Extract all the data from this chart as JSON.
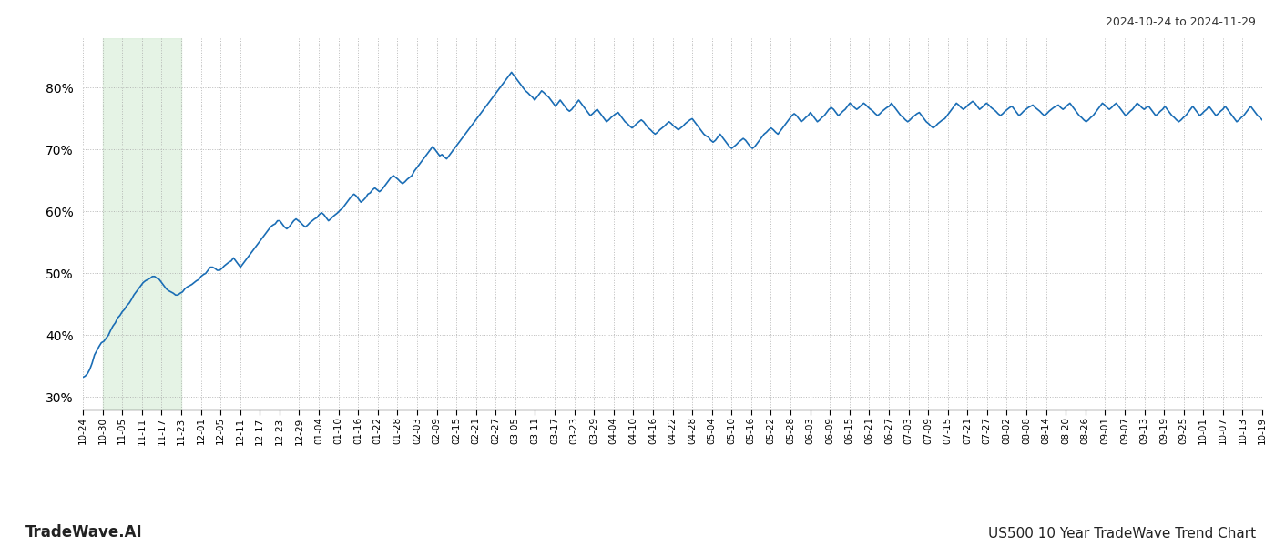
{
  "title_top_right": "2024-10-24 to 2024-11-29",
  "title_bottom_left": "TradeWave.AI",
  "title_bottom_right": "US500 10 Year TradeWave Trend Chart",
  "background_color": "#ffffff",
  "line_color": "#1a6db5",
  "highlight_color": "#d4ecd4",
  "highlight_alpha": 0.6,
  "ylim": [
    28,
    88
  ],
  "yticks": [
    30,
    40,
    50,
    60,
    70,
    80
  ],
  "grid_color": "#aaaaaa",
  "grid_style": ":",
  "grid_alpha": 0.8,
  "x_labels": [
    "10-24",
    "10-30",
    "11-05",
    "11-11",
    "11-17",
    "11-23",
    "12-01",
    "12-05",
    "12-11",
    "12-17",
    "12-23",
    "12-29",
    "01-04",
    "01-10",
    "01-16",
    "01-22",
    "01-28",
    "02-03",
    "02-09",
    "02-15",
    "02-21",
    "02-27",
    "03-05",
    "03-11",
    "03-17",
    "03-23",
    "03-29",
    "04-04",
    "04-10",
    "04-16",
    "04-22",
    "04-28",
    "05-04",
    "05-10",
    "05-16",
    "05-22",
    "05-28",
    "06-03",
    "06-09",
    "06-15",
    "06-21",
    "06-27",
    "07-03",
    "07-09",
    "07-15",
    "07-21",
    "07-27",
    "08-02",
    "08-08",
    "08-14",
    "08-20",
    "08-26",
    "09-01",
    "09-07",
    "09-13",
    "09-19",
    "09-25",
    "10-01",
    "10-07",
    "10-13",
    "10-19"
  ],
  "highlight_x_start_label": "10-30",
  "highlight_x_end_label": "11-23",
  "y_values": [
    33.2,
    33.4,
    33.8,
    34.5,
    35.5,
    36.8,
    37.5,
    38.2,
    38.8,
    39.0,
    39.5,
    40.0,
    40.8,
    41.5,
    42.0,
    42.8,
    43.2,
    43.8,
    44.2,
    44.8,
    45.2,
    45.8,
    46.5,
    47.0,
    47.5,
    48.0,
    48.5,
    48.8,
    49.0,
    49.2,
    49.5,
    49.5,
    49.2,
    49.0,
    48.5,
    48.0,
    47.5,
    47.2,
    47.0,
    46.8,
    46.5,
    46.5,
    46.8,
    47.0,
    47.5,
    47.8,
    48.0,
    48.2,
    48.5,
    48.8,
    49.0,
    49.5,
    49.8,
    50.0,
    50.5,
    51.0,
    51.0,
    50.8,
    50.5,
    50.5,
    50.8,
    51.2,
    51.5,
    51.8,
    52.0,
    52.5,
    52.0,
    51.5,
    51.0,
    51.5,
    52.0,
    52.5,
    53.0,
    53.5,
    54.0,
    54.5,
    55.0,
    55.5,
    56.0,
    56.5,
    57.0,
    57.5,
    57.8,
    58.0,
    58.5,
    58.5,
    58.0,
    57.5,
    57.2,
    57.5,
    58.0,
    58.5,
    58.8,
    58.5,
    58.2,
    57.8,
    57.5,
    57.8,
    58.2,
    58.5,
    58.8,
    59.0,
    59.5,
    59.8,
    59.5,
    59.0,
    58.5,
    58.8,
    59.2,
    59.5,
    59.8,
    60.2,
    60.5,
    61.0,
    61.5,
    62.0,
    62.5,
    62.8,
    62.5,
    62.0,
    61.5,
    61.8,
    62.2,
    62.8,
    63.0,
    63.5,
    63.8,
    63.5,
    63.2,
    63.5,
    64.0,
    64.5,
    65.0,
    65.5,
    65.8,
    65.5,
    65.2,
    64.8,
    64.5,
    64.8,
    65.2,
    65.5,
    65.8,
    66.5,
    67.0,
    67.5,
    68.0,
    68.5,
    69.0,
    69.5,
    70.0,
    70.5,
    70.0,
    69.5,
    69.0,
    69.2,
    68.8,
    68.5,
    69.0,
    69.5,
    70.0,
    70.5,
    71.0,
    71.5,
    72.0,
    72.5,
    73.0,
    73.5,
    74.0,
    74.5,
    75.0,
    75.5,
    76.0,
    76.5,
    77.0,
    77.5,
    78.0,
    78.5,
    79.0,
    79.5,
    80.0,
    80.5,
    81.0,
    81.5,
    82.0,
    82.5,
    82.0,
    81.5,
    81.0,
    80.5,
    80.0,
    79.5,
    79.2,
    78.8,
    78.5,
    78.0,
    78.5,
    79.0,
    79.5,
    79.2,
    78.8,
    78.5,
    78.0,
    77.5,
    77.0,
    77.5,
    78.0,
    77.5,
    77.0,
    76.5,
    76.2,
    76.5,
    77.0,
    77.5,
    78.0,
    77.5,
    77.0,
    76.5,
    76.0,
    75.5,
    75.8,
    76.2,
    76.5,
    76.0,
    75.5,
    75.0,
    74.5,
    74.8,
    75.2,
    75.5,
    75.8,
    76.0,
    75.5,
    75.0,
    74.5,
    74.2,
    73.8,
    73.5,
    73.8,
    74.2,
    74.5,
    74.8,
    74.5,
    74.0,
    73.5,
    73.2,
    72.8,
    72.5,
    72.8,
    73.2,
    73.5,
    73.8,
    74.2,
    74.5,
    74.2,
    73.8,
    73.5,
    73.2,
    73.5,
    73.8,
    74.2,
    74.5,
    74.8,
    75.0,
    74.5,
    74.0,
    73.5,
    73.0,
    72.5,
    72.2,
    72.0,
    71.5,
    71.2,
    71.5,
    72.0,
    72.5,
    72.0,
    71.5,
    71.0,
    70.5,
    70.2,
    70.5,
    70.8,
    71.2,
    71.5,
    71.8,
    71.5,
    71.0,
    70.5,
    70.2,
    70.5,
    71.0,
    71.5,
    72.0,
    72.5,
    72.8,
    73.2,
    73.5,
    73.2,
    72.8,
    72.5,
    73.0,
    73.5,
    74.0,
    74.5,
    75.0,
    75.5,
    75.8,
    75.5,
    75.0,
    74.5,
    74.8,
    75.2,
    75.5,
    76.0,
    75.5,
    75.0,
    74.5,
    74.8,
    75.2,
    75.5,
    76.0,
    76.5,
    76.8,
    76.5,
    76.0,
    75.5,
    75.8,
    76.2,
    76.5,
    77.0,
    77.5,
    77.2,
    76.8,
    76.5,
    76.8,
    77.2,
    77.5,
    77.2,
    76.8,
    76.5,
    76.2,
    75.8,
    75.5,
    75.8,
    76.2,
    76.5,
    76.8,
    77.0,
    77.5,
    77.0,
    76.5,
    76.0,
    75.5,
    75.2,
    74.8,
    74.5,
    74.8,
    75.2,
    75.5,
    75.8,
    76.0,
    75.5,
    75.0,
    74.5,
    74.2,
    73.8,
    73.5,
    73.8,
    74.2,
    74.5,
    74.8,
    75.0,
    75.5,
    76.0,
    76.5,
    77.0,
    77.5,
    77.2,
    76.8,
    76.5,
    76.8,
    77.2,
    77.5,
    77.8,
    77.5,
    77.0,
    76.5,
    76.8,
    77.2,
    77.5,
    77.2,
    76.8,
    76.5,
    76.2,
    75.8,
    75.5,
    75.8,
    76.2,
    76.5,
    76.8,
    77.0,
    76.5,
    76.0,
    75.5,
    75.8,
    76.2,
    76.5,
    76.8,
    77.0,
    77.2,
    76.8,
    76.5,
    76.2,
    75.8,
    75.5,
    75.8,
    76.2,
    76.5,
    76.8,
    77.0,
    77.2,
    76.8,
    76.5,
    76.8,
    77.2,
    77.5,
    77.0,
    76.5,
    76.0,
    75.5,
    75.2,
    74.8,
    74.5,
    74.8,
    75.2,
    75.5,
    76.0,
    76.5,
    77.0,
    77.5,
    77.2,
    76.8,
    76.5,
    76.8,
    77.2,
    77.5,
    77.0,
    76.5,
    76.0,
    75.5,
    75.8,
    76.2,
    76.5,
    77.0,
    77.5,
    77.2,
    76.8,
    76.5,
    76.8,
    77.0,
    76.5,
    76.0,
    75.5,
    75.8,
    76.2,
    76.5,
    77.0,
    76.5,
    76.0,
    75.5,
    75.2,
    74.8,
    74.5,
    74.8,
    75.2,
    75.5,
    76.0,
    76.5,
    77.0,
    76.5,
    76.0,
    75.5,
    75.8,
    76.2,
    76.5,
    77.0,
    76.5,
    76.0,
    75.5,
    75.8,
    76.2,
    76.5,
    77.0,
    76.5,
    76.0,
    75.5,
    75.0,
    74.5,
    74.8,
    75.2,
    75.5,
    76.0,
    76.5,
    77.0,
    76.5,
    76.0,
    75.5,
    75.2,
    74.8
  ]
}
